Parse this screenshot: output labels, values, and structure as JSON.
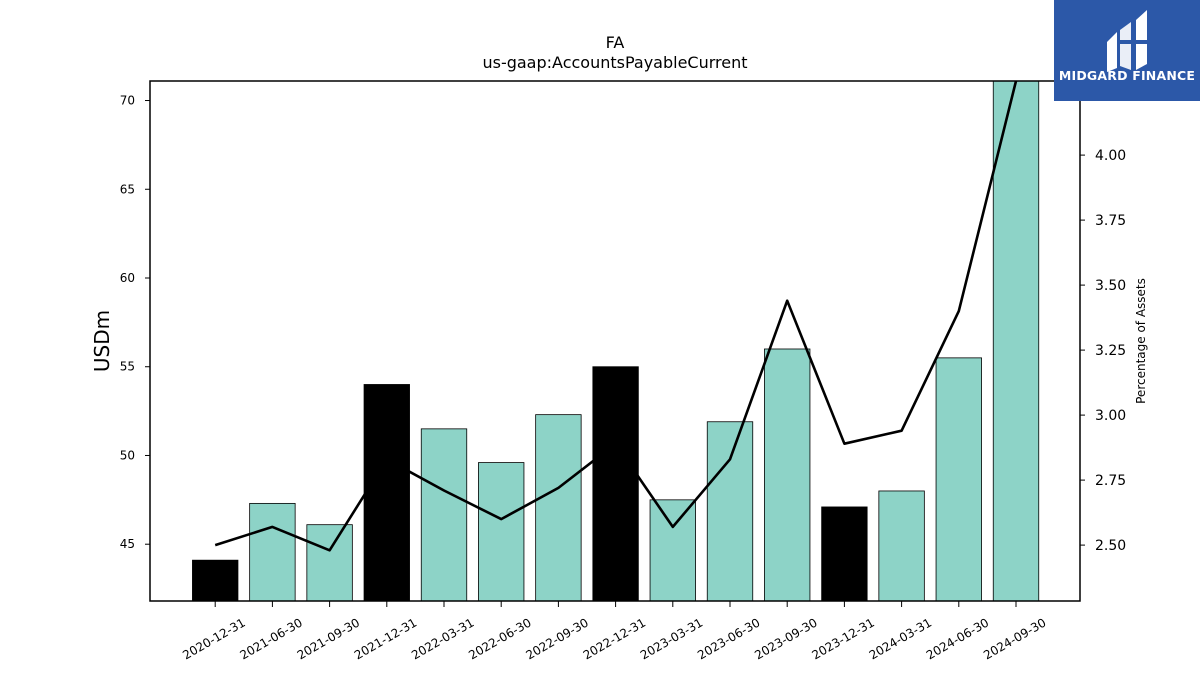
{
  "chart_data": {
    "type": "bar",
    "title": "FA",
    "subtitle": "us-gaap:AccountsPayableCurrent",
    "ylabel": "USDm",
    "y2label": "Percentage of Assets",
    "categories": [
      "2020-12-31",
      "2021-06-30",
      "2021-09-30",
      "2021-12-31",
      "2022-03-31",
      "2022-06-30",
      "2022-09-30",
      "2022-12-31",
      "2023-03-31",
      "2023-06-30",
      "2023-09-30",
      "2023-12-31",
      "2024-03-31",
      "2024-06-30",
      "2024-09-30"
    ],
    "series": [
      {
        "type": "bar",
        "values": [
          44.1,
          47.3,
          46.1,
          54.0,
          51.5,
          49.6,
          52.3,
          55.0,
          47.5,
          51.9,
          56.0,
          47.1,
          48.0,
          55.5,
          71.2
        ],
        "colors": [
          "#000000",
          "#8dd3c7",
          "#8dd3c7",
          "#000000",
          "#8dd3c7",
          "#8dd3c7",
          "#8dd3c7",
          "#000000",
          "#8dd3c7",
          "#8dd3c7",
          "#8dd3c7",
          "#000000",
          "#8dd3c7",
          "#8dd3c7",
          "#8dd3c7"
        ]
      },
      {
        "type": "line",
        "axis": "right",
        "color": "#000000",
        "values": [
          2.5,
          2.57,
          2.48,
          2.83,
          2.71,
          2.6,
          2.72,
          2.89,
          2.57,
          2.83,
          3.44,
          2.89,
          2.94,
          3.4,
          4.3
        ]
      }
    ],
    "ylim": [
      41.8,
      71.1
    ],
    "y2lim": [
      2.285,
      4.285
    ],
    "yticks": [
      45,
      50,
      55,
      60,
      65,
      70
    ],
    "y2ticks": [
      "2.50",
      "2.75",
      "3.00",
      "3.25",
      "3.50",
      "3.75",
      "4.00"
    ],
    "grid": false,
    "legend": "none"
  },
  "logo": {
    "text": "MIDGARD FINANCE",
    "background": "#2c58a8"
  }
}
